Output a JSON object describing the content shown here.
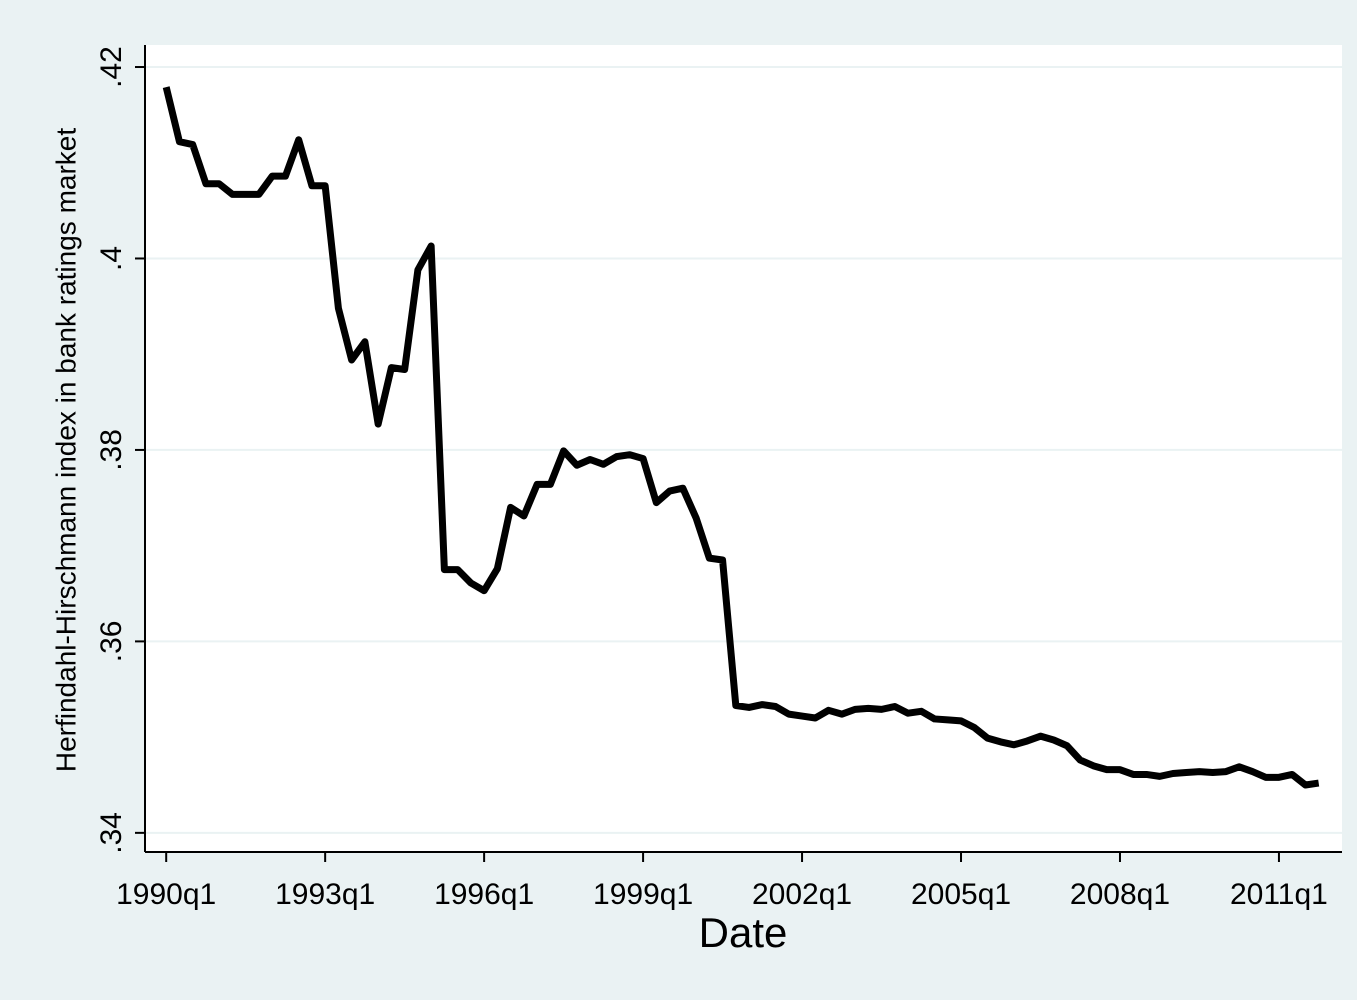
{
  "chart_data": {
    "type": "line",
    "x_label": "Date",
    "y_label": "Herfindahl-Hirschmann index in bank ratings market",
    "x": [
      1990,
      1990.25,
      1990.5,
      1990.75,
      1991,
      1991.25,
      1991.5,
      1991.75,
      1992,
      1992.25,
      1992.5,
      1992.75,
      1993,
      1993.25,
      1993.5,
      1993.75,
      1994,
      1994.25,
      1994.5,
      1994.75,
      1995,
      1995.25,
      1995.5,
      1995.75,
      1996,
      1996.25,
      1996.5,
      1996.75,
      1997,
      1997.25,
      1997.5,
      1997.75,
      1998,
      1998.25,
      1998.5,
      1998.75,
      1999,
      1999.25,
      1999.5,
      1999.75,
      2000,
      2000.25,
      2000.5,
      2000.75,
      2001,
      2001.25,
      2001.5,
      2001.75,
      2002,
      2002.25,
      2002.5,
      2002.75,
      2003,
      2003.25,
      2003.5,
      2003.75,
      2004,
      2004.25,
      2004.5,
      2004.75,
      2005,
      2005.25,
      2005.5,
      2005.75,
      2006,
      2006.25,
      2006.5,
      2006.75,
      2007,
      2007.25,
      2007.5,
      2007.75,
      2008,
      2008.25,
      2008.5,
      2008.75,
      2009,
      2009.25,
      2009.5,
      2009.75,
      2010,
      2010.25,
      2010.5,
      2010.75,
      2011,
      2011.25,
      2011.5,
      2011.75
    ],
    "series": [
      {
        "color": "#000000",
        "values": [
          0.4179,
          0.4122,
          0.4119,
          0.4078,
          0.4078,
          0.4067,
          0.4067,
          0.4067,
          0.4086,
          0.4086,
          0.4124,
          0.4076,
          0.4076,
          0.3948,
          0.3894,
          0.3913,
          0.3827,
          0.3886,
          0.3884,
          0.3988,
          0.4013,
          0.3675,
          0.3675,
          0.3661,
          0.3653,
          0.3676,
          0.374,
          0.3731,
          0.3764,
          0.3764,
          0.3799,
          0.3784,
          0.379,
          0.3785,
          0.3793,
          0.3795,
          0.3791,
          0.3745,
          0.3757,
          0.376,
          0.3729,
          0.3687,
          0.3685,
          0.3533,
          0.3531,
          0.3534,
          0.3532,
          0.3524,
          0.3522,
          0.352,
          0.3528,
          0.3524,
          0.3529,
          0.353,
          0.3529,
          0.3532,
          0.3525,
          0.3527,
          0.3519,
          0.3518,
          0.3517,
          0.351,
          0.3499,
          0.3495,
          0.3492,
          0.3496,
          0.3501,
          0.3497,
          0.3491,
          0.3476,
          0.347,
          0.3466,
          0.3466,
          0.3461,
          0.3461,
          0.3459,
          0.3462,
          0.3463,
          0.3464,
          0.3463,
          0.3464,
          0.3469,
          0.3464,
          0.3458,
          0.3458,
          0.3461,
          0.345,
          0.3452
        ]
      }
    ],
    "xlim": [
      1989.6,
      2012.19
    ],
    "xticks": [
      {
        "value": 1990,
        "label": "1990q1"
      },
      {
        "value": 1993,
        "label": "1993q1"
      },
      {
        "value": 1996,
        "label": "1996q1"
      },
      {
        "value": 1999,
        "label": "1999q1"
      },
      {
        "value": 2002,
        "label": "2002q1"
      },
      {
        "value": 2005,
        "label": "2005q1"
      },
      {
        "value": 2008,
        "label": "2008q1"
      },
      {
        "value": 2011,
        "label": "2011q1"
      }
    ],
    "ylim": [
      0.338,
      0.4223
    ],
    "yticks": [
      {
        "value": 0.34,
        "label": ".34"
      },
      {
        "value": 0.36,
        "label": ".36"
      },
      {
        "value": 0.38,
        "label": ".38"
      },
      {
        "value": 0.4,
        "label": ".4"
      },
      {
        "value": 0.42,
        "label": ".42"
      }
    ],
    "grid": true
  }
}
